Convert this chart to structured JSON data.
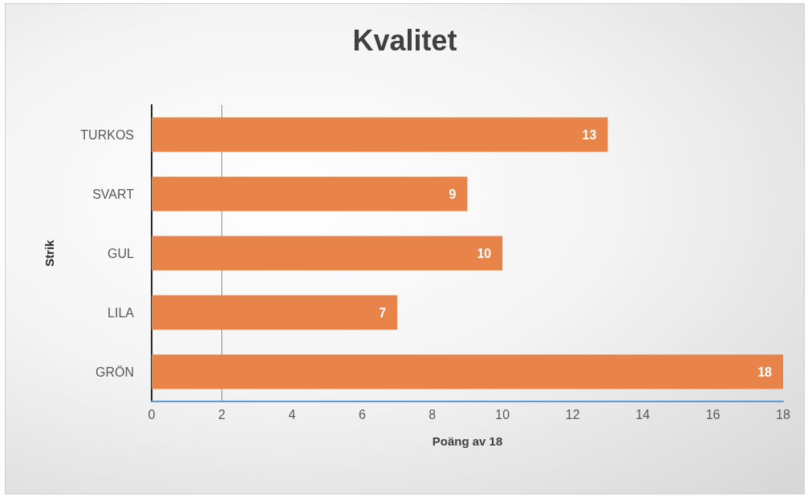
{
  "chart_data": {
    "type": "bar",
    "orientation": "horizontal",
    "title": "Kvalitet",
    "xlabel": "Poäng av 18",
    "ylabel": "Strik",
    "categories": [
      "TURKOS",
      "SVART",
      "GUL",
      "LILA",
      "GRÖN"
    ],
    "values": [
      13,
      9,
      10,
      7,
      18
    ],
    "color": "#e8834a",
    "xlim": [
      0,
      18
    ],
    "xticks": [
      0,
      2,
      4,
      6,
      8,
      10,
      12,
      14,
      16,
      18
    ],
    "ref_lines": [
      {
        "axis": "x",
        "value": 2,
        "color": "#8c8c8c"
      }
    ],
    "grid": false,
    "data_labels": true
  }
}
